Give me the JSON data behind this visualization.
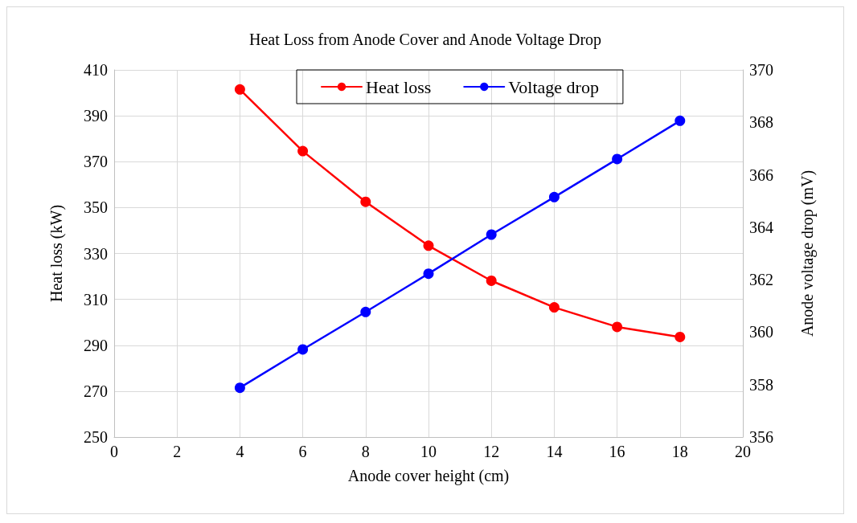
{
  "chart_data": {
    "type": "line",
    "title": "Heat Loss from Anode Cover and Anode Voltage Drop",
    "xlabel": "Anode cover height (cm)",
    "ylabel": "Heat loss (kW)",
    "y2label": "Anode voltage drop (mV)",
    "x": [
      4,
      6,
      8,
      10,
      12,
      14,
      16,
      18
    ],
    "series": [
      {
        "name": "Heat loss",
        "color": "#ff0000",
        "values": [
          401.5,
          374.6,
          352.5,
          333.4,
          318.1,
          306.5,
          298,
          293.6
        ]
      },
      {
        "name": "Voltage drop",
        "color": "#0000ff",
        "axis": "y2",
        "values": [
          357.88,
          359.34,
          360.77,
          362.23,
          363.72,
          365.15,
          366.6,
          368.06
        ]
      }
    ],
    "xlim": [
      0,
      20
    ],
    "xticks": [
      0,
      2,
      4,
      6,
      8,
      10,
      12,
      14,
      16,
      18,
      20
    ],
    "ylim": [
      250,
      410
    ],
    "yticks": [
      250,
      270,
      290,
      310,
      330,
      350,
      370,
      390,
      410
    ],
    "y2lim": [
      356,
      370
    ],
    "y2ticks": [
      356,
      358,
      360,
      362,
      364,
      366,
      368,
      370
    ],
    "grid": true,
    "legend": "top",
    "marker": "circle",
    "line_style": "solid"
  }
}
